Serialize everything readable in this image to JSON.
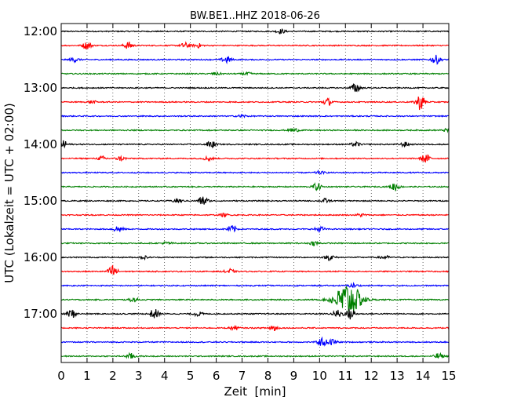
{
  "chart_data": {
    "type": "line",
    "title": "BW.BE1..HHZ 2018-06-26",
    "xlabel": "Zeit  [min]",
    "ylabel": "UTC (Lokalzeit = UTC + 02:00)",
    "xlim": [
      0,
      15
    ],
    "x_ticks": [
      0,
      1,
      2,
      3,
      4,
      5,
      6,
      7,
      8,
      9,
      10,
      11,
      12,
      13,
      14,
      15
    ],
    "y_ticks": [
      "12:00",
      "13:00",
      "14:00",
      "15:00",
      "16:00",
      "17:00"
    ],
    "grid": "vertical dotted at each minute",
    "trace_colors": [
      "#000000",
      "#ff0000",
      "#0000ff",
      "#008000"
    ],
    "traces": [
      {
        "start": "12:00",
        "events": [
          [
            8.5,
            0.3
          ]
        ]
      },
      {
        "start": "12:15",
        "events": [
          [
            1.0,
            0.5
          ],
          [
            2.6,
            0.5
          ],
          [
            4.8,
            0.4
          ],
          [
            5.3,
            0.3
          ]
        ]
      },
      {
        "start": "12:30",
        "events": [
          [
            0.5,
            0.3
          ],
          [
            6.4,
            0.5
          ],
          [
            14.5,
            0.6
          ]
        ]
      },
      {
        "start": "12:45",
        "events": [
          [
            7.2,
            0.2
          ],
          [
            6.0,
            0.2
          ]
        ]
      },
      {
        "start": "13:00",
        "events": [
          [
            11.4,
            0.7
          ]
        ]
      },
      {
        "start": "13:15",
        "events": [
          [
            10.3,
            0.5
          ],
          [
            13.9,
            1.1
          ],
          [
            1.2,
            0.2
          ]
        ]
      },
      {
        "start": "13:30",
        "events": [
          [
            7.0,
            0.2
          ]
        ]
      },
      {
        "start": "13:45",
        "events": [
          [
            9.0,
            0.3
          ],
          [
            15.0,
            0.3
          ]
        ]
      },
      {
        "start": "14:00",
        "events": [
          [
            0.1,
            0.5
          ],
          [
            5.8,
            0.5
          ],
          [
            11.4,
            0.3
          ],
          [
            13.3,
            0.3
          ]
        ]
      },
      {
        "start": "14:15",
        "events": [
          [
            1.6,
            0.3
          ],
          [
            2.3,
            0.3
          ],
          [
            5.7,
            0.3
          ],
          [
            14.1,
            0.6
          ]
        ]
      },
      {
        "start": "14:30",
        "events": [
          [
            10.0,
            0.2
          ]
        ]
      },
      {
        "start": "14:45",
        "events": [
          [
            9.9,
            0.5
          ],
          [
            12.9,
            0.6
          ]
        ]
      },
      {
        "start": "15:00",
        "events": [
          [
            5.5,
            0.7
          ],
          [
            10.2,
            0.3
          ],
          [
            4.5,
            0.3
          ]
        ]
      },
      {
        "start": "15:15",
        "events": [
          [
            6.3,
            0.2
          ],
          [
            11.6,
            0.2
          ]
        ]
      },
      {
        "start": "15:30",
        "events": [
          [
            2.2,
            0.5
          ],
          [
            6.6,
            0.5
          ],
          [
            10.0,
            0.4
          ]
        ]
      },
      {
        "start": "15:45",
        "events": [
          [
            4.1,
            0.2
          ],
          [
            9.8,
            0.3
          ]
        ]
      },
      {
        "start": "16:00",
        "events": [
          [
            10.4,
            0.4
          ],
          [
            12.5,
            0.3
          ],
          [
            3.2,
            0.2
          ]
        ]
      },
      {
        "start": "16:15",
        "events": [
          [
            2.0,
            0.9
          ],
          [
            6.5,
            0.4
          ]
        ]
      },
      {
        "start": "16:30",
        "events": [
          [
            11.3,
            0.3
          ]
        ]
      },
      {
        "start": "16:45",
        "events": [
          [
            11.1,
            2.4
          ],
          [
            2.8,
            0.3
          ]
        ]
      },
      {
        "start": "17:00",
        "events": [
          [
            0.4,
            0.6
          ],
          [
            3.6,
            0.7
          ],
          [
            10.7,
            0.6
          ],
          [
            11.2,
            0.8
          ],
          [
            5.3,
            0.3
          ]
        ]
      },
      {
        "start": "17:15",
        "events": [
          [
            6.7,
            0.3
          ],
          [
            8.2,
            0.5
          ]
        ]
      },
      {
        "start": "17:30",
        "events": [
          [
            10.1,
            0.6
          ],
          [
            10.5,
            0.4
          ]
        ]
      },
      {
        "start": "17:45",
        "events": [
          [
            2.7,
            0.4
          ],
          [
            14.6,
            0.4
          ]
        ]
      }
    ]
  }
}
